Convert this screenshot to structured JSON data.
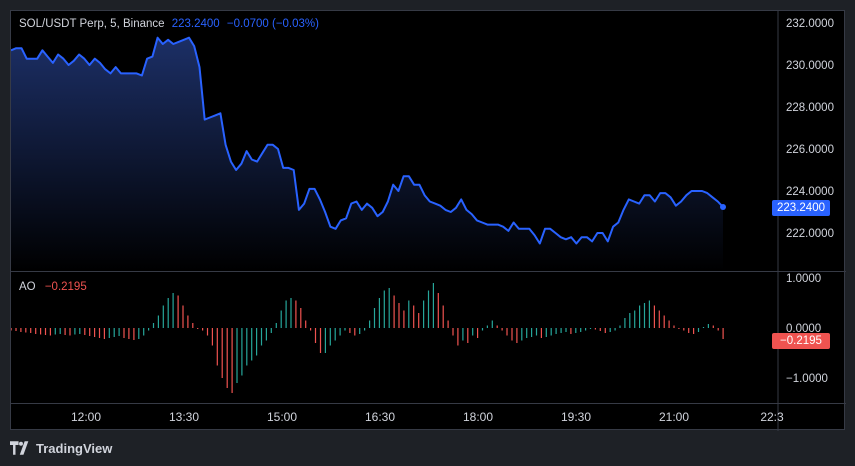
{
  "header": {
    "symbol": "SOL/USDT Perp, 5, Binance",
    "price": "223.2400",
    "change": "−0.0700 (−0.03%)"
  },
  "indicator": {
    "name": "AO",
    "value": "−0.2195"
  },
  "price_scale": {
    "labels": [
      "232.0000",
      "230.0000",
      "228.0000",
      "226.0000",
      "224.0000",
      "222.0000"
    ],
    "current_tag": "223.2400"
  },
  "ao_scale": {
    "labels": [
      "1.0000",
      "0.0000",
      "−1.0000"
    ],
    "current_tag": "−0.2195"
  },
  "time_axis": {
    "labels": [
      "12:00",
      "13:30",
      "15:00",
      "16:30",
      "18:00",
      "19:30",
      "21:00",
      "22:3"
    ]
  },
  "footer": {
    "brand": "TradingView"
  },
  "colors": {
    "line": "#2962ff",
    "up": "#26a69a",
    "down": "#ef5350",
    "grid": "#363a45",
    "text": "#d1d4dc"
  },
  "chart_data": [
    {
      "type": "area",
      "xlabel": "",
      "ylabel": "",
      "ylim": [
        221,
        232.5
      ],
      "x_ticks": [
        "12:00",
        "13:30",
        "15:00",
        "16:30",
        "18:00",
        "19:30",
        "21:00",
        "22:3"
      ],
      "series": [
        {
          "values": [
            230.7,
            230.8,
            230.8,
            230.3,
            230.3,
            230.3,
            230.7,
            230.4,
            230.1,
            230.5,
            230.3,
            230.0,
            230.2,
            230.5,
            230.3,
            230.0,
            230.3,
            230.1,
            229.8,
            229.6,
            229.9,
            229.6,
            229.6,
            229.6,
            229.6,
            229.5,
            230.3,
            230.4,
            231.3,
            231.0,
            231.2,
            231.0,
            231.1,
            231.2,
            231.3,
            230.9,
            229.9,
            227.4,
            227.5,
            227.6,
            227.7,
            226.2,
            225.4,
            225.0,
            225.3,
            225.9,
            225.5,
            225.4,
            225.8,
            226.2,
            226.2,
            226.0,
            225.1,
            225.1,
            225.0,
            223.1,
            223.4,
            224.1,
            224.1,
            223.6,
            223.0,
            222.3,
            222.2,
            222.6,
            222.7,
            223.4,
            223.5,
            223.1,
            223.4,
            223.2,
            222.8,
            223.0,
            223.5,
            224.3,
            224.0,
            224.7,
            224.7,
            224.3,
            224.3,
            223.8,
            223.5,
            223.4,
            223.3,
            223.1,
            223.0,
            223.2,
            223.6,
            223.1,
            222.9,
            222.6,
            222.5,
            222.4,
            222.4,
            222.4,
            222.3,
            222.1,
            222.5,
            222.2,
            222.2,
            222.2,
            221.9,
            221.5,
            222.2,
            222.2,
            222.0,
            221.8,
            221.7,
            221.8,
            221.5,
            221.8,
            221.8,
            221.6,
            222.0,
            222.0,
            221.6,
            222.3,
            222.5,
            223.1,
            223.6,
            223.5,
            223.4,
            223.8,
            223.8,
            223.5,
            223.9,
            223.9,
            223.7,
            223.3,
            223.5,
            223.8,
            224.0,
            224.0,
            224.0,
            223.9,
            223.7,
            223.5,
            223.24
          ]
        }
      ],
      "last_value": 223.24
    },
    {
      "type": "bar",
      "title": "AO",
      "ylim": [
        -1.5,
        1.0
      ],
      "series": [
        {
          "name": "AO",
          "values": [
            -0.05,
            -0.06,
            -0.08,
            -0.09,
            -0.1,
            -0.12,
            -0.13,
            -0.14,
            -0.15,
            -0.13,
            -0.12,
            -0.14,
            -0.15,
            -0.13,
            -0.12,
            -0.14,
            -0.16,
            -0.18,
            -0.2,
            -0.22,
            -0.2,
            -0.18,
            -0.16,
            -0.2,
            -0.22,
            -0.24,
            -0.22,
            -0.15,
            -0.05,
            0.1,
            0.25,
            0.45,
            0.6,
            0.7,
            0.65,
            0.45,
            0.25,
            0.1,
            0.0,
            -0.05,
            -0.15,
            -0.35,
            -0.75,
            -1.0,
            -1.2,
            -1.3,
            -1.1,
            -0.95,
            -0.75,
            -0.65,
            -0.55,
            -0.35,
            -0.25,
            -0.1,
            0.1,
            0.35,
            0.55,
            0.6,
            0.55,
            0.4,
            0.15,
            -0.05,
            -0.3,
            -0.5,
            -0.5,
            -0.35,
            -0.25,
            -0.15,
            -0.05,
            -0.1,
            -0.15,
            -0.12,
            -0.05,
            0.15,
            0.4,
            0.6,
            0.75,
            0.8,
            0.65,
            0.5,
            0.35,
            0.55,
            0.45,
            0.3,
            0.55,
            0.75,
            0.9,
            0.7,
            0.45,
            0.15,
            -0.15,
            -0.35,
            -0.25,
            -0.3,
            -0.15,
            -0.2,
            -0.05,
            0.05,
            0.15,
            0.05,
            -0.05,
            -0.15,
            -0.25,
            -0.3,
            -0.25,
            -0.2,
            -0.18,
            -0.15,
            -0.2,
            -0.18,
            -0.15,
            -0.12,
            -0.1,
            -0.08,
            -0.12,
            -0.1,
            -0.08,
            -0.05,
            -0.02,
            -0.03,
            -0.06,
            -0.1,
            -0.08,
            -0.05,
            0.05,
            0.2,
            0.3,
            0.35,
            0.45,
            0.5,
            0.55,
            0.45,
            0.35,
            0.25,
            0.15,
            0.05,
            0.0,
            -0.05,
            -0.1,
            -0.12,
            -0.08,
            0.02,
            0.08,
            0.05,
            -0.05,
            -0.22
          ]
        }
      ]
    }
  ]
}
